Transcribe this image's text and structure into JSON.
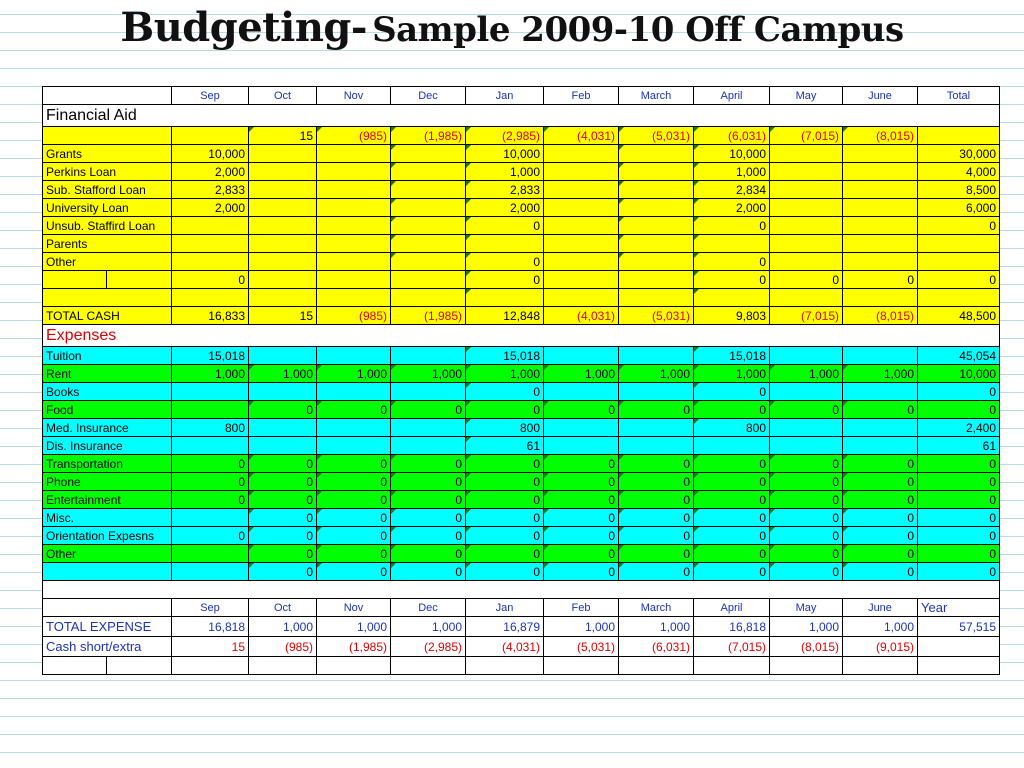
{
  "slide": {
    "title_main": "Budgeting-",
    "title_sub": "Sample 2009-10 Off Campus"
  },
  "months": [
    "Sep",
    "Oct",
    "Nov",
    "Dec",
    "Jan",
    "Feb",
    "March",
    "April",
    "May",
    "June"
  ],
  "total_header": "Total",
  "year_header": "Year",
  "financial_aid": {
    "section_label": "Financial Aid",
    "carry_row": [
      "",
      "15",
      "(985)",
      "(1,985)",
      "(2,985)",
      "(4,031)",
      "(5,031)",
      "(6,031)",
      "(7,015)",
      "(8,015)"
    ],
    "carry_total": "",
    "rows": [
      {
        "label": "Grants",
        "values": [
          "10,000",
          "",
          "",
          "",
          "10,000",
          "",
          "",
          "10,000",
          "",
          ""
        ],
        "total": "30,000"
      },
      {
        "label": "Perkins Loan",
        "values": [
          "2,000",
          "",
          "",
          "",
          "1,000",
          "",
          "",
          "1,000",
          "",
          ""
        ],
        "total": "4,000"
      },
      {
        "label": "Sub. Stafford Loan",
        "values": [
          "2,833",
          "",
          "",
          "",
          "2,833",
          "",
          "",
          "2,834",
          "",
          ""
        ],
        "total": "8,500"
      },
      {
        "label": "University Loan",
        "values": [
          "2,000",
          "",
          "",
          "",
          "2,000",
          "",
          "",
          "2,000",
          "",
          ""
        ],
        "total": "6,000"
      },
      {
        "label": "Unsub. Staffird Loan",
        "values": [
          "",
          "",
          "",
          "",
          "0",
          "",
          "",
          "0",
          "",
          ""
        ],
        "total": "0"
      },
      {
        "label": "Parents",
        "values": [
          "",
          "",
          "",
          "",
          "",
          "",
          "",
          "",
          "",
          ""
        ],
        "total": ""
      },
      {
        "label": "Other",
        "values": [
          "",
          "",
          "",
          "",
          "0",
          "",
          "",
          "0",
          "",
          ""
        ],
        "total": ""
      },
      {
        "label": "",
        "values": [
          "0",
          "",
          "",
          "",
          "0",
          "",
          "",
          "0",
          "0",
          "0"
        ],
        "total": "0"
      },
      {
        "label": "",
        "values": [
          "",
          "",
          "",
          "",
          "",
          "",
          "",
          "",
          "",
          ""
        ],
        "total": ""
      }
    ],
    "total_cash": {
      "label": "TOTAL CASH",
      "values": [
        "16,833",
        "15",
        "(985)",
        "(1,985)",
        "12,848",
        "(4,031)",
        "(5,031)",
        "9,803",
        "(7,015)",
        "(8,015)"
      ],
      "total": "48,500"
    }
  },
  "expenses": {
    "section_label": "Expenses",
    "rows": [
      {
        "label": "Tuition",
        "color": "cyan",
        "values": [
          "15,018",
          "",
          "",
          "",
          "15,018",
          "",
          "",
          "15,018",
          "",
          ""
        ],
        "total": "45,054"
      },
      {
        "label": "Rent",
        "color": "green",
        "values": [
          "1,000",
          "1,000",
          "1,000",
          "1,000",
          "1,000",
          "1,000",
          "1,000",
          "1,000",
          "1,000",
          "1,000"
        ],
        "total": "10,000"
      },
      {
        "label": "Books",
        "color": "cyan",
        "values": [
          "",
          "",
          "",
          "",
          "0",
          "",
          "",
          "0",
          "",
          ""
        ],
        "total": "0"
      },
      {
        "label": "Food",
        "color": "green",
        "values": [
          "",
          "0",
          "0",
          "0",
          "0",
          "0",
          "0",
          "0",
          "0",
          "0"
        ],
        "total": "0"
      },
      {
        "label": "Med. Insurance",
        "color": "cyan",
        "values": [
          "800",
          "",
          "",
          "",
          "800",
          "",
          "",
          "800",
          "",
          ""
        ],
        "total": "2,400"
      },
      {
        "label": "Dis. Insurance",
        "color": "cyan",
        "values": [
          "",
          "",
          "",
          "",
          "61",
          "",
          "",
          "",
          "",
          ""
        ],
        "total": "61"
      },
      {
        "label": "Transportation",
        "color": "green",
        "values": [
          "0",
          "0",
          "0",
          "0",
          "0",
          "0",
          "0",
          "0",
          "0",
          "0"
        ],
        "total": "0"
      },
      {
        "label": "Phone",
        "color": "green",
        "values": [
          "0",
          "0",
          "0",
          "0",
          "0",
          "0",
          "0",
          "0",
          "0",
          "0"
        ],
        "total": "0"
      },
      {
        "label": "Entertainment",
        "color": "green",
        "values": [
          "0",
          "0",
          "0",
          "0",
          "0",
          "0",
          "0",
          "0",
          "0",
          "0"
        ],
        "total": "0"
      },
      {
        "label": "Misc.",
        "color": "cyan",
        "values": [
          "",
          "0",
          "0",
          "0",
          "0",
          "0",
          "0",
          "0",
          "0",
          "0"
        ],
        "total": "0"
      },
      {
        "label": "Orientation Expesns",
        "color": "cyan",
        "values": [
          "0",
          "0",
          "0",
          "0",
          "0",
          "0",
          "0",
          "0",
          "0",
          "0"
        ],
        "total": "0"
      },
      {
        "label": "Other",
        "color": "green",
        "values": [
          "",
          "0",
          "0",
          "0",
          "0",
          "0",
          "0",
          "0",
          "0",
          "0"
        ],
        "total": "0"
      },
      {
        "label": "",
        "color": "cyan",
        "values": [
          "",
          "0",
          "0",
          "0",
          "0",
          "0",
          "0",
          "0",
          "0",
          "0"
        ],
        "total": "0"
      }
    ]
  },
  "summary": {
    "total_expense": {
      "label": "TOTAL EXPENSE",
      "values": [
        "16,818",
        "1,000",
        "1,000",
        "1,000",
        "16,879",
        "1,000",
        "1,000",
        "16,818",
        "1,000",
        "1,000"
      ],
      "total": "57,515"
    },
    "cash_short": {
      "label": "Cash short/extra",
      "values": [
        "15",
        "(985)",
        "(1,985)",
        "(2,985)",
        "(4,031)",
        "(5,031)",
        "(6,031)",
        "(7,015)",
        "(8,015)",
        "(9,015)"
      ],
      "total": ""
    }
  },
  "colors": {
    "yellow": "#ffff00",
    "cyan": "#00ffff",
    "green": "#00ff00",
    "header_blue": "#1a33b8",
    "negative_red": "#e00000"
  }
}
